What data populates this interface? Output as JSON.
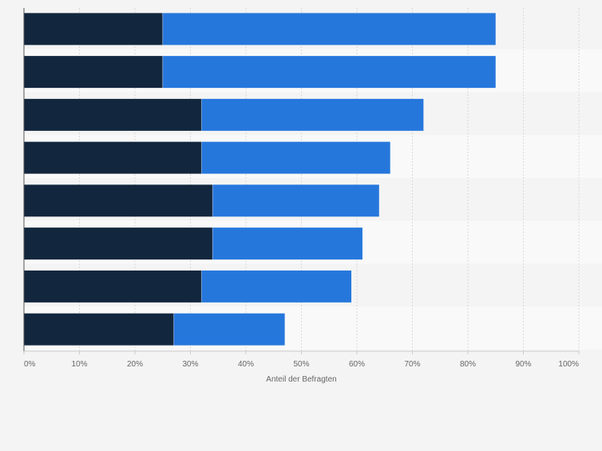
{
  "colors": {
    "series_dark": "#12263d",
    "series_blue": "#2677dc",
    "band_light": "#f9f9f9",
    "band_dark": "#f4f4f4",
    "grid": "#d9d9d9",
    "axis": "#555555"
  },
  "chart_data": {
    "type": "bar",
    "orientation": "horizontal",
    "stacked": true,
    "categories": [
      "",
      "",
      "",
      "",
      "",
      "",
      "",
      ""
    ],
    "series": [
      {
        "values": [
          25,
          25,
          32,
          32,
          34,
          34,
          32,
          27
        ]
      },
      {
        "values": [
          60,
          60,
          40,
          34,
          30,
          27,
          27,
          20
        ]
      }
    ],
    "xlabel": "Anteil der Befragten",
    "xlim": [
      0,
      100
    ],
    "xticks": [
      0,
      10,
      20,
      30,
      40,
      50,
      60,
      70,
      80,
      90,
      100
    ],
    "xtick_labels": [
      "0%",
      "10%",
      "20%",
      "30%",
      "40%",
      "50%",
      "60%",
      "70%",
      "80%",
      "90%",
      "100%"
    ],
    "grid": true,
    "legend": "none"
  }
}
